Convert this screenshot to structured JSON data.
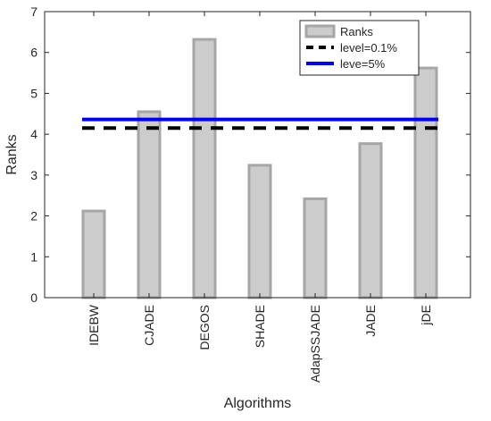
{
  "chart_data": {
    "type": "bar",
    "categories": [
      "IDEBW",
      "CJADE",
      "DEGOS",
      "SHADE",
      "AdapSSJADE",
      "JADE",
      "jDE"
    ],
    "series": [
      {
        "name": "Ranks",
        "values": [
          2.12,
          4.55,
          6.32,
          3.24,
          2.42,
          3.77,
          5.62
        ]
      }
    ],
    "reference_lines": [
      {
        "name": "level=0.1%",
        "value": 4.15,
        "style": "dashed",
        "color": "#000000"
      },
      {
        "name": "leve=5%",
        "value": 4.36,
        "style": "solid",
        "color": "#0000ff"
      }
    ],
    "xlabel": "Algorithms",
    "ylabel": "Ranks",
    "ylim": [
      0,
      7
    ],
    "yticks": [
      0,
      1,
      2,
      3,
      4,
      5,
      6,
      7
    ],
    "grid": false,
    "legend_position": "top-right",
    "colors": {
      "bar_fill": "#cccccc",
      "bar_edge": "#a6a6a6",
      "axis": "#262626"
    }
  }
}
